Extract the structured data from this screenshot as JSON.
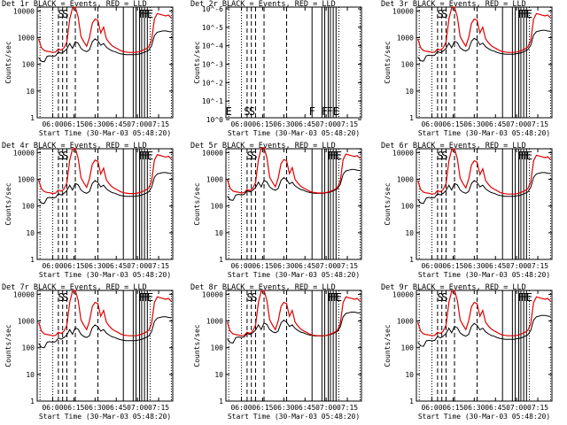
{
  "chart_data": {
    "type": "line",
    "layout": "3x3 grid",
    "x_tick_labels": [
      "06:00",
      "06:15",
      "06:30",
      "06:45",
      "07:00",
      "07:15"
    ],
    "x_ticks_min": [
      0,
      15,
      30,
      45,
      60,
      75
    ],
    "x_range_min": [
      -11,
      85
    ],
    "x_axis_origin": "05:49",
    "xlabel": "Start Time (30-Mar-03 05:48:20)",
    "ylabel": "Counts/sec",
    "series_colors": {
      "events": "#000000",
      "lld": "#e00000"
    },
    "standard_y": {
      "ticks": [
        1,
        10,
        100,
        1000,
        10000
      ],
      "tick_labels": [
        "1",
        "10",
        "100",
        "1000",
        "10000"
      ],
      "log": true,
      "range": [
        1,
        14000
      ]
    },
    "empty_y": {
      "ticks": [
        1,
        0.1,
        0.01,
        0.001,
        0.0001,
        1e-05,
        1e-06
      ],
      "tick_labels": [
        "10^0",
        "10^-1",
        "10^-2",
        "10^-3",
        "10^-4",
        "10^-5",
        "10^-6"
      ],
      "log": true,
      "range": [
        0.8,
        8e-07
      ]
    },
    "time_min": [
      -10,
      -8,
      -6,
      -4,
      -2,
      0,
      2,
      4,
      6,
      8,
      10,
      12,
      14,
      16,
      18,
      20,
      22,
      24,
      26,
      28,
      30,
      32,
      34,
      36,
      38,
      40,
      42,
      44,
      46,
      48,
      50,
      52,
      54,
      56,
      58,
      60,
      62,
      64,
      66,
      68,
      70,
      72,
      74,
      76,
      78,
      80,
      82,
      84
    ],
    "events_profile": [
      180,
      130,
      125,
      200,
      210,
      200,
      210,
      290,
      260,
      300,
      380,
      600,
      400,
      700,
      620,
      400,
      330,
      300,
      350,
      700,
      900,
      760,
      520,
      600,
      440,
      370,
      320,
      300,
      270,
      250,
      240,
      230,
      230,
      230,
      230,
      240,
      250,
      270,
      300,
      340,
      500,
      1200,
      1600,
      1700,
      1800,
      1800,
      1700,
      1650
    ],
    "lld_profile": [
      900,
      420,
      330,
      310,
      300,
      280,
      290,
      380,
      340,
      420,
      700,
      5000,
      13000,
      14000,
      6000,
      1100,
      700,
      480,
      1000,
      3500,
      5000,
      4500,
      1500,
      2500,
      900,
      650,
      500,
      430,
      380,
      330,
      300,
      290,
      280,
      280,
      280,
      290,
      310,
      340,
      380,
      450,
      800,
      5000,
      8000,
      7500,
      7000,
      6500,
      7000,
      5500
    ],
    "panels": [
      {
        "title": "Det 1r BLACK = Events, RED = LLD",
        "has_data": true,
        "events_scale": 1.0,
        "lld_scale": 1.0,
        "flags": [
          "S",
          "S",
          "F",
          "F",
          "F",
          "E"
        ]
      },
      {
        "title": "Det 2r BLACK = Events, RED = LLD",
        "has_data": false,
        "events_scale": 0,
        "lld_scale": 0,
        "flags": [
          "E",
          "S",
          "S",
          "F",
          "F",
          "F",
          "E"
        ]
      },
      {
        "title": "Det 3r BLACK = Events, RED = LLD",
        "has_data": true,
        "events_scale": 1.05,
        "lld_scale": 1.0,
        "flags": [
          "S",
          "S",
          "F",
          "F",
          "F",
          "E"
        ]
      },
      {
        "title": "Det 4r BLACK = Events, RED = LLD",
        "has_data": true,
        "events_scale": 1.0,
        "lld_scale": 1.05,
        "flags": [
          "S",
          "S",
          "F",
          "F",
          "F",
          "E"
        ]
      },
      {
        "title": "Det 5r BLACK = Events, RED = LLD",
        "has_data": true,
        "events_scale": 1.3,
        "lld_scale": 1.1,
        "flags": [
          "S",
          "S",
          "F",
          "F",
          "F",
          "E"
        ]
      },
      {
        "title": "Det 6r BLACK = Events, RED = LLD",
        "has_data": true,
        "events_scale": 1.0,
        "lld_scale": 1.0,
        "flags": [
          "S",
          "S",
          "F",
          "F",
          "F",
          "E"
        ]
      },
      {
        "title": "Det 7r BLACK = Events, RED = LLD",
        "has_data": true,
        "events_scale": 0.8,
        "lld_scale": 1.0,
        "flags": [
          "S",
          "S",
          "F",
          "F",
          "F",
          "E"
        ]
      },
      {
        "title": "Det 8r BLACK = Events, RED = LLD",
        "has_data": true,
        "events_scale": 1.2,
        "lld_scale": 1.0,
        "flags": [
          "S",
          "S",
          "F",
          "F",
          "F",
          "E"
        ]
      },
      {
        "title": "Det 9r BLACK = Events, RED = LLD",
        "has_data": true,
        "events_scale": 0.9,
        "lld_scale": 1.0,
        "flags": [
          "S",
          "S",
          "F",
          "F",
          "F",
          "E"
        ]
      }
    ],
    "vertical_markers": [
      {
        "min": -9,
        "style": "dotted"
      },
      {
        "min": 0,
        "style": "dotted"
      },
      {
        "min": 4,
        "style": "dashed"
      },
      {
        "min": 7,
        "style": "dashed"
      },
      {
        "min": 10,
        "style": "dashed"
      },
      {
        "min": 16,
        "style": "dashed"
      },
      {
        "min": 32,
        "style": "dashed"
      },
      {
        "min": 50,
        "style": "solid"
      },
      {
        "min": 57,
        "style": "solid"
      },
      {
        "min": 59,
        "style": "solid"
      },
      {
        "min": 61.5,
        "style": "solid"
      },
      {
        "min": 63,
        "style": "solid"
      },
      {
        "min": 65,
        "style": "solid"
      },
      {
        "min": 67,
        "style": "solid"
      },
      {
        "min": 69,
        "style": "dotted"
      },
      {
        "min": 84,
        "style": "dotted"
      }
    ],
    "flag_positions_min": {
      "with_data": [
        6,
        9,
        63,
        65,
        67,
        69
      ],
      "no_data": [
        -9,
        4,
        7.5,
        50,
        59,
        62.5,
        67
      ]
    },
    "grid": false,
    "legend": "none"
  }
}
